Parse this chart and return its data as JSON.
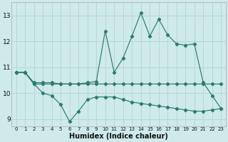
{
  "xlabel": "Humidex (Indice chaleur)",
  "bg_color": "#ceeaea",
  "line_color": "#2d7b6e",
  "grid_color": "#b8d8d4",
  "x": [
    0,
    1,
    2,
    3,
    4,
    5,
    6,
    7,
    8,
    9,
    10,
    11,
    12,
    13,
    14,
    15,
    16,
    17,
    18,
    19,
    20,
    21,
    22,
    23
  ],
  "y_top": [
    10.8,
    10.8,
    10.4,
    10.4,
    10.4,
    10.35,
    10.35,
    10.35,
    10.4,
    10.45,
    12.4,
    10.8,
    11.35,
    12.2,
    13.1,
    12.2,
    12.85,
    12.25,
    11.9,
    11.85,
    11.9,
    10.4,
    9.9,
    9.4
  ],
  "y_mid": [
    10.8,
    10.8,
    10.35,
    10.35,
    10.35,
    10.35,
    10.35,
    10.35,
    10.35,
    10.35,
    10.35,
    10.35,
    10.35,
    10.35,
    10.35,
    10.35,
    10.35,
    10.35,
    10.35,
    10.35,
    10.35,
    10.35,
    10.35,
    10.35
  ],
  "y_bot": [
    10.8,
    10.8,
    10.35,
    10.0,
    9.9,
    9.55,
    8.9,
    9.3,
    9.75,
    9.85,
    9.85,
    9.85,
    9.75,
    9.65,
    9.6,
    9.55,
    9.5,
    9.45,
    9.4,
    9.35,
    9.3,
    9.3,
    9.35,
    9.4
  ],
  "ylim": [
    8.7,
    13.5
  ],
  "yticks": [
    9,
    10,
    11,
    12,
    13
  ],
  "xticks": [
    0,
    1,
    2,
    3,
    4,
    5,
    6,
    7,
    8,
    9,
    10,
    11,
    12,
    13,
    14,
    15,
    16,
    17,
    18,
    19,
    20,
    21,
    22,
    23
  ],
  "figsize": [
    3.2,
    2.0
  ],
  "dpi": 100
}
